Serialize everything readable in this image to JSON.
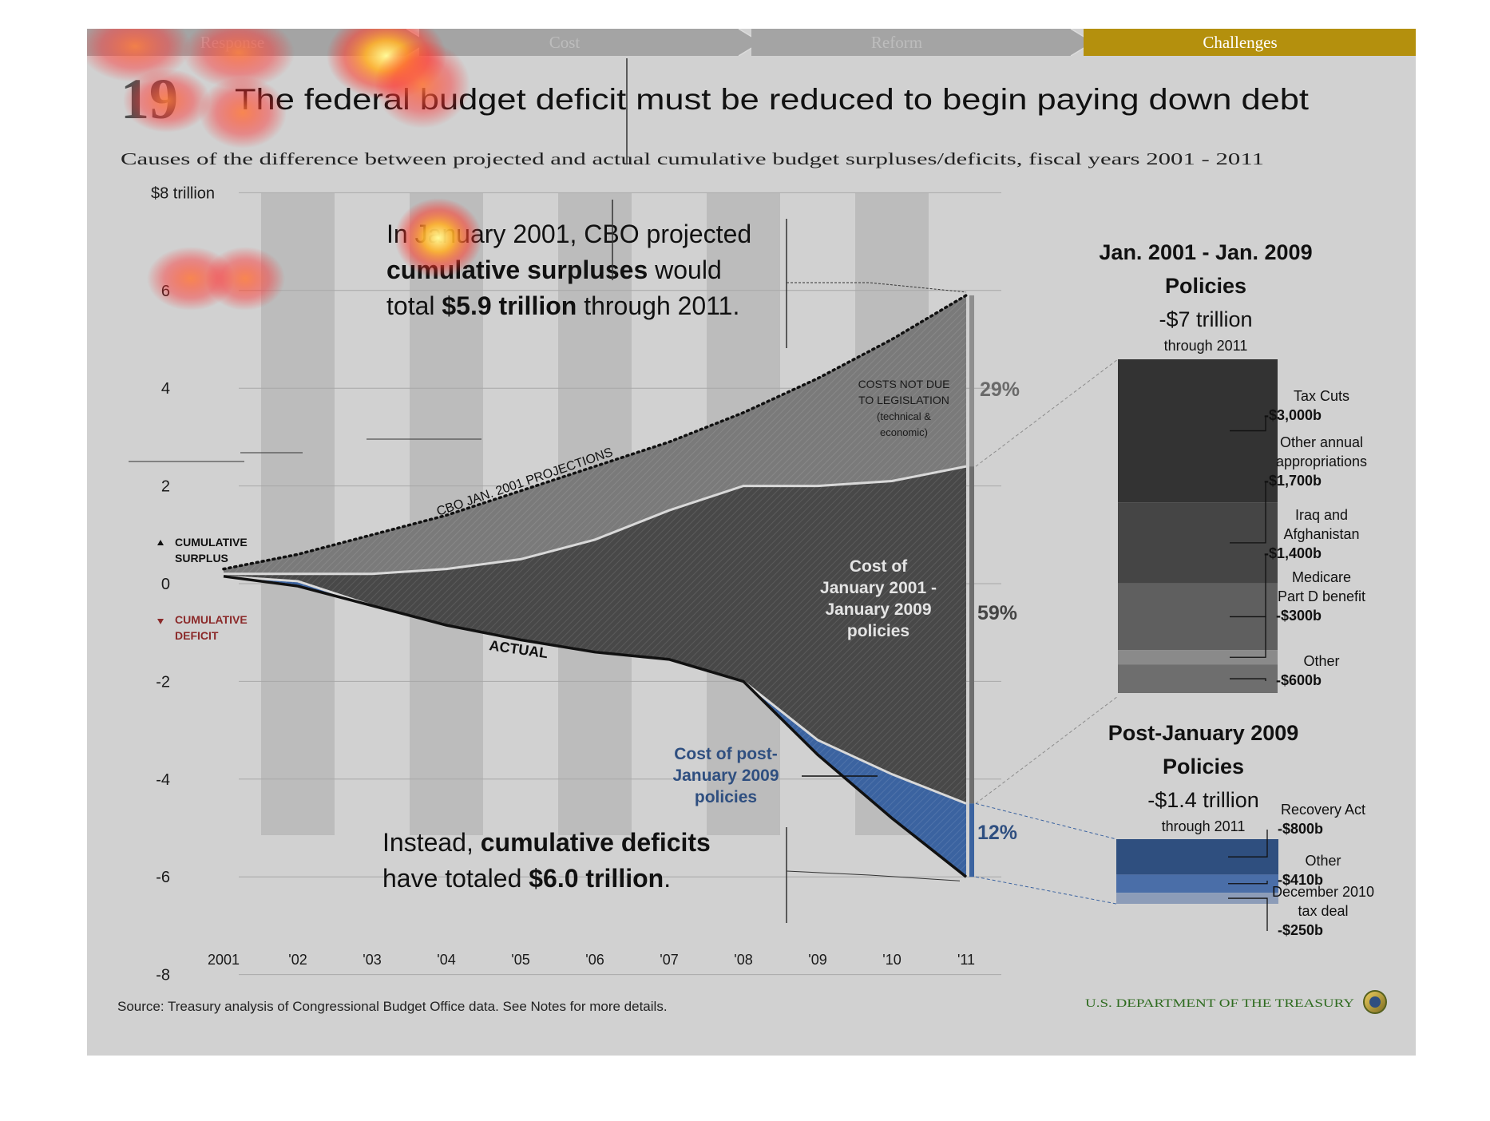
{
  "nav": {
    "steps": [
      "Response",
      "Cost",
      "Reform",
      "Challenges"
    ],
    "active": 3,
    "active_color": "#b4900d"
  },
  "header": {
    "number": "19",
    "title": "The federal budget deficit must be reduced to begin paying down debt",
    "subtitle": "Causes of the difference between projected and actual cumulative budget surpluses/deficits, fiscal years 2001 - 2011"
  },
  "chart_data": {
    "type": "area",
    "x": [
      "2001",
      "'02",
      "'03",
      "'04",
      "'05",
      "'06",
      "'07",
      "'08",
      "'09",
      "'10",
      "'11"
    ],
    "ylim": [
      -8,
      8
    ],
    "y_ticks": [
      "$8 trillion",
      "6",
      "4",
      "2",
      "0",
      "-2",
      "-4",
      "-6",
      "-8"
    ],
    "y_tick_values": [
      8,
      6,
      4,
      2,
      0,
      -2,
      -4,
      -6,
      -8
    ],
    "grid": true,
    "series": [
      {
        "name": "CBO JAN. 2001 PROJECTIONS",
        "values": [
          0.3,
          0.6,
          1.0,
          1.4,
          1.9,
          2.4,
          2.9,
          3.5,
          4.2,
          5.0,
          5.9
        ]
      },
      {
        "name": "",
        "values": [
          0.2,
          0.2,
          0.2,
          0.3,
          0.5,
          0.9,
          1.5,
          2.0,
          2.0,
          2.1,
          2.4
        ]
      },
      {
        "name": "",
        "values": [
          0.15,
          0.05,
          -0.45,
          -0.85,
          -1.15,
          -1.4,
          -1.55,
          -2.0,
          -3.2,
          -3.9,
          -4.5
        ]
      },
      {
        "name": "ACTUAL",
        "values": [
          0.15,
          -0.05,
          -0.45,
          -0.85,
          -1.15,
          -1.4,
          -1.55,
          -2.0,
          -3.5,
          -4.8,
          -6.0
        ]
      }
    ],
    "surplus_label": [
      "CUMULATIVE",
      "SURPLUS"
    ],
    "deficit_label": [
      "CUMULATIVE",
      "DEFICIT"
    ],
    "colors": {
      "projection_band": "#7a7a7a",
      "policy_band": "#484848",
      "post2009_band": "#3b63a0",
      "deficit_label": "#8b2a2a",
      "post2009_label": "#2f4f80"
    },
    "annotations": {
      "projected_lines": [
        "In January 2001, CBO projected",
        "cumulative surpluses",
        " would",
        "total ",
        "$5.9 trillion",
        " through 2011."
      ],
      "actual_lines": [
        "Instead, ",
        "cumulative deficits",
        "have totaled ",
        "$6.0 trillion",
        "."
      ],
      "costs_not_due": [
        "COSTS NOT DUE",
        "TO LEGISLATION",
        "(technical &",
        "economic)"
      ],
      "policies_2001_2009": [
        "Cost of",
        "January 2001 -",
        "January 2009",
        "policies"
      ],
      "post_2009": [
        "Cost of post-",
        "January 2009",
        "policies"
      ],
      "pct_technical": "29%",
      "pct_policies": "59%",
      "pct_post": "12%"
    },
    "breakdown": [
      {
        "heading": [
          "Jan. 2001 - Jan. 2009",
          "Policies"
        ],
        "total": "-$7 trillion",
        "through": "through 2011",
        "items": [
          {
            "label": [
              "Tax Cuts"
            ],
            "value": "-$3,000b",
            "amount": 3000,
            "color": "#333333"
          },
          {
            "label": [
              "Other annual",
              "appropriations"
            ],
            "value": "-$1,700b",
            "amount": 1700,
            "color": "#454545"
          },
          {
            "label": [
              "Iraq and",
              "Afghanistan"
            ],
            "value": "-$1,400b",
            "amount": 1400,
            "color": "#5f5f5f"
          },
          {
            "label": [
              "Medicare",
              "Part D benefit"
            ],
            "value": "-$300b",
            "amount": 300,
            "color": "#8a8a8a"
          },
          {
            "label": [
              "Other"
            ],
            "value": "-$600b",
            "amount": 600,
            "color": "#6e6e6e"
          }
        ]
      },
      {
        "heading": [
          "Post-January 2009",
          "Policies"
        ],
        "total": "-$1.4 trillion",
        "through": "through 2011",
        "items": [
          {
            "label": [
              "Recovery Act"
            ],
            "value": "-$800b",
            "amount": 800,
            "color": "#2f4f7f"
          },
          {
            "label": [
              "Other"
            ],
            "value": "-$410b",
            "amount": 410,
            "color": "#4a6ea8"
          },
          {
            "label": [
              "December 2010",
              "tax deal"
            ],
            "value": "-$250b",
            "amount": 250,
            "color": "#8c9cb8"
          }
        ]
      }
    ]
  },
  "footer": {
    "source": "Source: Treasury analysis of Congressional Budget Office data. See Notes for more details.",
    "agency": "U.S. DEPARTMENT OF THE TREASURY"
  }
}
